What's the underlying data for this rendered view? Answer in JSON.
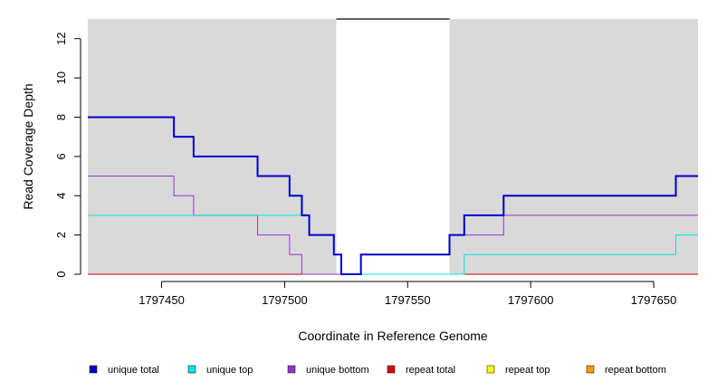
{
  "chart_data": {
    "type": "line",
    "step": true,
    "xlabel": "Coordinate in Reference Genome",
    "ylabel": "Read Coverage Depth",
    "xlim": [
      1797420,
      1797668
    ],
    "ylim": [
      0,
      13
    ],
    "x_ticks": [
      1797450,
      1797500,
      1797550,
      1797600,
      1797650
    ],
    "x_tick_labels": [
      "1797450",
      "1797500",
      "1797550",
      "1797600",
      "1797650"
    ],
    "y_ticks": [
      0,
      2,
      4,
      6,
      8,
      10,
      12
    ],
    "y_tick_labels": [
      "0",
      "2",
      "4",
      "6",
      "8",
      "10",
      "12"
    ],
    "shaded_regions": [
      {
        "x0": 1797420,
        "x1": 1797521,
        "color": "#d9d9d9"
      },
      {
        "x0": 1797567,
        "x1": 1797668,
        "color": "#d9d9d9"
      }
    ],
    "top_marker": {
      "x0": 1797521,
      "x1": 1797567,
      "y": 13,
      "color": "#000000"
    },
    "legend_position": "bottom",
    "series": [
      {
        "name": "unique total",
        "color": "#0000cc",
        "line_width": 2,
        "points": [
          [
            1797420,
            8
          ],
          [
            1797455,
            7
          ],
          [
            1797463,
            6
          ],
          [
            1797489,
            5
          ],
          [
            1797502,
            4
          ],
          [
            1797507,
            3
          ],
          [
            1797510,
            2
          ],
          [
            1797520,
            1
          ],
          [
            1797523,
            0
          ],
          [
            1797531,
            1
          ],
          [
            1797567,
            2
          ],
          [
            1797573,
            3
          ],
          [
            1797589,
            4
          ],
          [
            1797659,
            5
          ],
          [
            1797668,
            5
          ]
        ]
      },
      {
        "name": "unique top",
        "color": "#00e5e5",
        "line_width": 1,
        "points": [
          [
            1797420,
            3
          ],
          [
            1797510,
            2
          ],
          [
            1797520,
            1
          ],
          [
            1797523,
            0
          ],
          [
            1797573,
            1
          ],
          [
            1797659,
            2
          ],
          [
            1797668,
            2
          ]
        ]
      },
      {
        "name": "unique bottom",
        "color": "#9933cc",
        "line_width": 1,
        "points": [
          [
            1797420,
            5
          ],
          [
            1797455,
            4
          ],
          [
            1797463,
            3
          ],
          [
            1797489,
            2
          ],
          [
            1797502,
            1
          ],
          [
            1797507,
            0
          ],
          [
            1797531,
            1
          ],
          [
            1797567,
            2
          ],
          [
            1797589,
            3
          ],
          [
            1797668,
            3
          ]
        ]
      },
      {
        "name": "repeat total",
        "color": "#dd0000",
        "line_width": 1,
        "points": [
          [
            1797420,
            0
          ],
          [
            1797668,
            0
          ]
        ]
      },
      {
        "name": "repeat top",
        "color": "#ffff00",
        "line_width": 1,
        "points": [
          [
            1797420,
            0
          ],
          [
            1797668,
            0
          ]
        ]
      },
      {
        "name": "repeat bottom",
        "color": "#ff9900",
        "line_width": 1,
        "points": [
          [
            1797420,
            0
          ],
          [
            1797668,
            0
          ]
        ]
      }
    ]
  }
}
